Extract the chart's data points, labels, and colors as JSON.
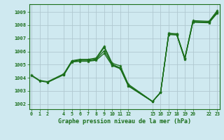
{
  "title": "Graphe pression niveau de la mer (hPa)",
  "bg_color": "#cfe9f0",
  "grid_color": "#b0c8d0",
  "line_color": "#1a6e1a",
  "spine_color": "#1a6e1a",
  "ylim": [
    1001.6,
    1009.6
  ],
  "yticks": [
    1002,
    1003,
    1004,
    1005,
    1006,
    1007,
    1008,
    1009
  ],
  "xlim": [
    -0.3,
    23.3
  ],
  "xtick_positions": [
    0,
    1,
    2,
    4,
    5,
    6,
    7,
    8,
    9,
    10,
    11,
    12,
    15,
    16,
    17,
    18,
    19,
    20,
    22,
    23
  ],
  "xtick_labels": [
    "0",
    "1",
    "2",
    "4",
    "5",
    "6",
    "7",
    "8",
    "9",
    "10",
    "11",
    "12",
    "15",
    "16",
    "17",
    "18",
    "19",
    "20",
    "22",
    "23"
  ],
  "lines": [
    {
      "x": [
        0,
        1,
        2,
        4,
        5,
        6,
        7,
        8,
        9,
        10,
        11,
        12,
        15,
        16,
        17,
        18,
        19,
        20,
        22,
        23
      ],
      "y": [
        1004.2,
        1003.8,
        1003.7,
        1004.3,
        1005.3,
        1005.4,
        1005.4,
        1005.5,
        1006.4,
        1005.1,
        1004.9,
        1003.5,
        1002.2,
        1002.9,
        1007.4,
        1007.35,
        1005.5,
        1008.35,
        1008.3,
        1009.1
      ]
    },
    {
      "x": [
        0,
        1,
        2,
        4,
        5,
        6,
        7,
        8,
        9,
        10,
        11,
        12,
        15,
        16,
        17,
        18,
        19,
        20,
        22,
        23
      ],
      "y": [
        1004.15,
        1003.75,
        1003.65,
        1004.25,
        1005.25,
        1005.35,
        1005.35,
        1005.42,
        1006.3,
        1005.02,
        1004.75,
        1003.42,
        1002.18,
        1002.88,
        1007.3,
        1007.3,
        1005.45,
        1008.28,
        1008.25,
        1009.0
      ]
    },
    {
      "x": [
        2,
        4,
        5,
        6,
        7,
        8,
        9,
        10,
        11,
        12,
        15,
        16,
        17,
        18,
        19,
        20,
        22,
        23
      ],
      "y": [
        1003.65,
        1004.22,
        1005.22,
        1005.28,
        1005.28,
        1005.38,
        1006.05,
        1004.98,
        1004.72,
        1003.38,
        1002.18,
        1002.88,
        1007.3,
        1007.28,
        1005.42,
        1008.25,
        1008.22,
        1008.95
      ]
    },
    {
      "x": [
        4,
        5,
        6,
        7,
        8,
        9,
        10,
        11,
        12,
        15,
        16,
        17,
        18,
        19,
        20,
        22,
        23
      ],
      "y": [
        1004.2,
        1005.2,
        1005.25,
        1005.25,
        1005.32,
        1005.85,
        1004.92,
        1004.68,
        1003.36,
        1002.18,
        1002.88,
        1007.28,
        1007.25,
        1005.4,
        1008.22,
        1008.18,
        1008.9
      ]
    }
  ]
}
